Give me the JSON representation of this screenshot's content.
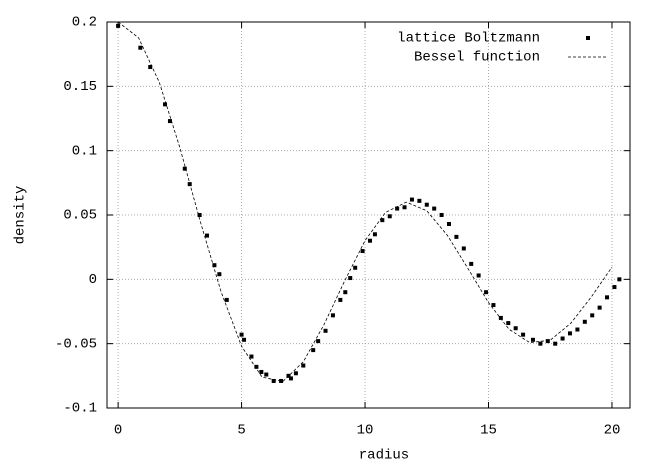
{
  "chart_data": {
    "type": "scatter",
    "xlabel": "radius",
    "ylabel": "density",
    "xlim": [
      -0.45,
      20.73
    ],
    "ylim": [
      -0.1,
      0.2
    ],
    "xticks": [
      0,
      5,
      10,
      15,
      20
    ],
    "yticks": [
      -0.1,
      -0.05,
      0,
      0.05,
      0.1,
      0.15,
      0.2
    ],
    "grid": true,
    "legend": "upper right",
    "series": [
      {
        "name": "lattice Boltzmann",
        "color": "#000000",
        "type": "scatter",
        "x": [
          0,
          0.9,
          1.3,
          1.9,
          2.1,
          2.7,
          2.9,
          3.3,
          3.6,
          3.9,
          4.1,
          4.4,
          5,
          5.1,
          5.4,
          5.6,
          5.8,
          6,
          6.3,
          6.6,
          6.9,
          7,
          7.2,
          7.5,
          7.9,
          8.1,
          8.4,
          8.7,
          9,
          9.2,
          9.4,
          9.6,
          9.9,
          10.2,
          10.4,
          10.7,
          11,
          11.3,
          11.6,
          11.9,
          12.2,
          12.5,
          12.8,
          13.1,
          13.4,
          13.7,
          14,
          14.3,
          14.6,
          14.9,
          15.2,
          15.5,
          15.8,
          16.1,
          16.4,
          16.8,
          17.1,
          17.4,
          17.7,
          18,
          18.3,
          18.6,
          18.9,
          19.2,
          19.5,
          19.8,
          20.1,
          20.3
        ],
        "y": [
          0.197,
          0.18,
          0.165,
          0.136,
          0.123,
          0.086,
          0.074,
          0.05,
          0.034,
          0.011,
          0.004,
          -0.016,
          -0.043,
          -0.047,
          -0.06,
          -0.068,
          -0.072,
          -0.074,
          -0.079,
          -0.079,
          -0.075,
          -0.077,
          -0.073,
          -0.067,
          -0.055,
          -0.048,
          -0.04,
          -0.028,
          -0.016,
          -0.01,
          0.001,
          0.009,
          0.022,
          0.03,
          0.035,
          0.046,
          0.049,
          0.055,
          0.056,
          0.062,
          0.061,
          0.058,
          0.055,
          0.05,
          0.043,
          0.033,
          0.024,
          0.012,
          0.003,
          -0.01,
          -0.02,
          -0.03,
          -0.034,
          -0.038,
          -0.043,
          -0.047,
          -0.05,
          -0.048,
          -0.05,
          -0.046,
          -0.042,
          -0.039,
          -0.033,
          -0.028,
          -0.022,
          -0.014,
          -0.006,
          0
        ]
      },
      {
        "name": "Bessel function",
        "color": "#000000",
        "type": "line",
        "x": [
          0,
          0.83,
          1.67,
          2.5,
          3.33,
          4.17,
          5,
          5.83,
          6.67,
          7.5,
          8.33,
          9.17,
          10,
          10.83,
          11.67,
          12.5,
          13.33,
          14.17,
          15,
          15.83,
          16.67,
          17.5,
          18.33,
          19.17,
          20
        ],
        "y": [
          0.2,
          0.1877,
          0.153,
          0.1024,
          0.0448,
          -0.0097,
          -0.052,
          -0.076,
          -0.0794,
          -0.0641,
          -0.0355,
          -0.0014,
          0.0301,
          0.052,
          0.06,
          0.0533,
          0.0343,
          0.0084,
          -0.0181,
          -0.0388,
          -0.0492,
          -0.0473,
          -0.0342,
          -0.0135,
          0.0095
        ]
      }
    ]
  }
}
